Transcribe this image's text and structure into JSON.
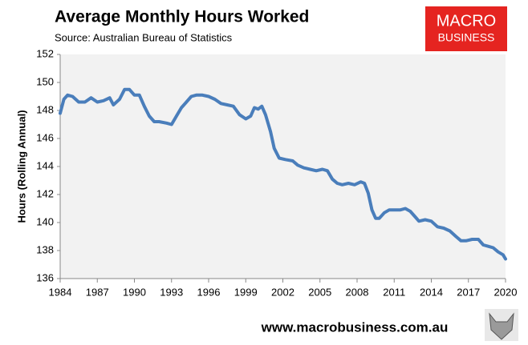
{
  "chart_data": {
    "type": "line",
    "title": "Average Monthly Hours Worked",
    "subtitle": "Source: Australian Bureau of Statistics",
    "y_label": "Hours (Rolling Annual)",
    "color": "#4a7ebb",
    "grid": false,
    "x": [
      1984.0,
      1984.3,
      1984.6,
      1985.0,
      1985.5,
      1986.0,
      1986.5,
      1987.0,
      1987.5,
      1988.0,
      1988.3,
      1988.8,
      1989.2,
      1989.6,
      1990.0,
      1990.4,
      1990.8,
      1991.2,
      1991.6,
      1992.0,
      1992.6,
      1993.0,
      1993.4,
      1993.8,
      1994.2,
      1994.6,
      1995.0,
      1995.5,
      1996.0,
      1996.5,
      1997.0,
      1997.5,
      1998.0,
      1998.5,
      1999.0,
      1999.4,
      1999.7,
      2000.0,
      2000.3,
      2000.6,
      2001.0,
      2001.3,
      2001.7,
      2002.2,
      2002.8,
      2003.2,
      2003.7,
      2004.2,
      2004.7,
      2005.2,
      2005.6,
      2006.0,
      2006.4,
      2006.8,
      2007.3,
      2007.8,
      2008.3,
      2008.6,
      2008.9,
      2009.2,
      2009.5,
      2009.8,
      2010.2,
      2010.6,
      2011.0,
      2011.5,
      2011.9,
      2012.3,
      2012.7,
      2013.0,
      2013.5,
      2014.0,
      2014.5,
      2015.0,
      2015.5,
      2016.0,
      2016.4,
      2016.8,
      2017.3,
      2017.8,
      2018.2,
      2018.6,
      2019.0,
      2019.4,
      2019.8,
      2020.0
    ],
    "values": [
      147.8,
      148.8,
      149.1,
      149.0,
      148.6,
      148.6,
      148.9,
      148.6,
      148.7,
      148.9,
      148.4,
      148.8,
      149.5,
      149.5,
      149.1,
      149.1,
      148.3,
      147.6,
      147.2,
      147.2,
      147.1,
      147.0,
      147.6,
      148.2,
      148.6,
      149.0,
      149.1,
      149.1,
      149.0,
      148.8,
      148.5,
      148.4,
      148.3,
      147.7,
      147.4,
      147.6,
      148.2,
      148.1,
      148.3,
      147.7,
      146.5,
      145.3,
      144.6,
      144.5,
      144.4,
      144.1,
      143.9,
      143.8,
      143.7,
      143.8,
      143.7,
      143.1,
      142.8,
      142.7,
      142.8,
      142.7,
      142.9,
      142.8,
      142.1,
      140.9,
      140.3,
      140.3,
      140.7,
      140.9,
      140.9,
      140.9,
      141.0,
      140.8,
      140.4,
      140.1,
      140.2,
      140.1,
      139.7,
      139.6,
      139.4,
      139.0,
      138.7,
      138.7,
      138.8,
      138.8,
      138.4,
      138.3,
      138.2,
      137.9,
      137.7,
      137.4
    ],
    "xlim": [
      1984,
      2020
    ],
    "xticks": [
      1984,
      1987,
      1990,
      1993,
      1996,
      1999,
      2002,
      2005,
      2008,
      2011,
      2014,
      2017,
      2020
    ],
    "ylim": [
      136,
      152
    ],
    "yticks": [
      136,
      138,
      140,
      142,
      144,
      146,
      148,
      150,
      152
    ]
  },
  "logo": {
    "line1": "MACRO",
    "line2": "BUSINESS"
  },
  "footer": "www.macrobusiness.com.au"
}
